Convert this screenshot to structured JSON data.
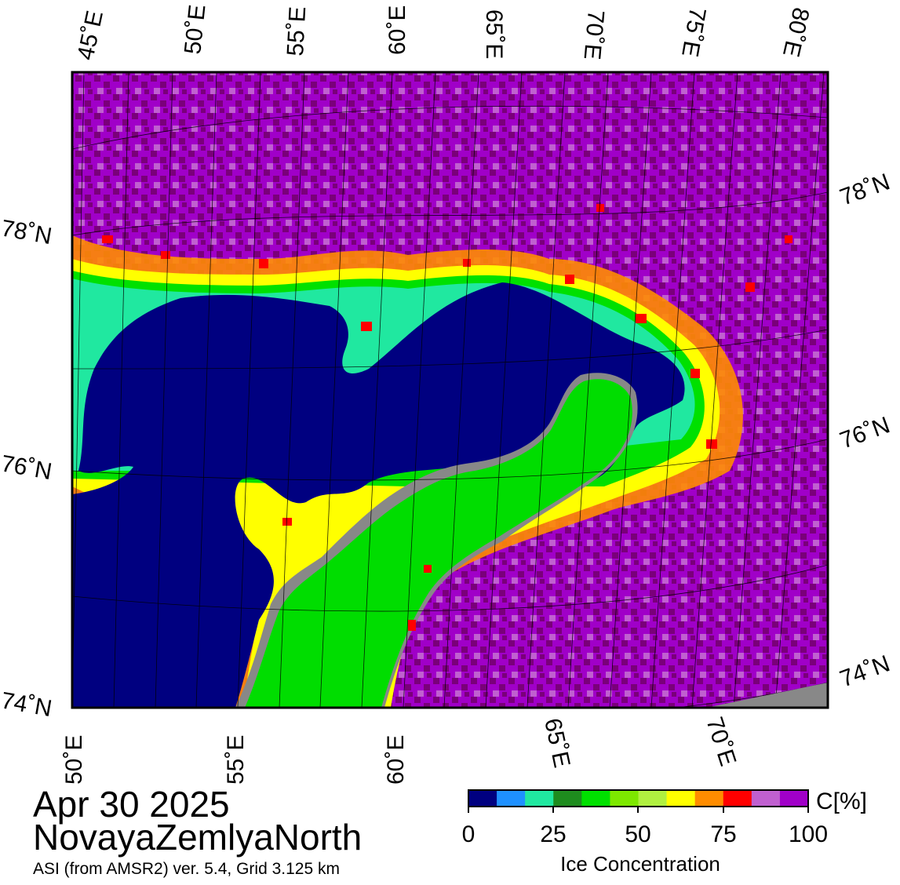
{
  "map": {
    "date": "Apr 30 2025",
    "region": "NovayaZemlyaNorth",
    "product": "ASI (from AMSR2) ver. 5.4,  Grid 3.125 km",
    "top_lon_labels": [
      "45˚E",
      "50˚E",
      "55˚E",
      "60˚E",
      "65˚E",
      "70˚E",
      "75˚E",
      "80˚E"
    ],
    "bottom_lon_labels": [
      "50˚E",
      "55˚E",
      "60˚E",
      "65˚E",
      "70˚E"
    ],
    "left_lat_labels": [
      "78˚N",
      "76˚N",
      "74˚N"
    ],
    "right_lat_labels": [
      "78˚N",
      "76˚N",
      "74˚N"
    ],
    "colors": {
      "open_water": "#000080",
      "land": "#00dd00",
      "land_shadow": "#888888",
      "ice_high": "#7a007a",
      "ice_full": "#a000c8",
      "frame": "#000000"
    }
  },
  "legend": {
    "unit_label": "C[%]",
    "title": "Ice Concentration",
    "tick_labels": [
      "0",
      "25",
      "50",
      "75",
      "100"
    ],
    "min": 0,
    "max": 100,
    "colors": [
      "#000080",
      "#1e90ff",
      "#20e8a0",
      "#1e8c1e",
      "#00e000",
      "#7de800",
      "#b0f040",
      "#ffff00",
      "#ff8c00",
      "#ff0000",
      "#c060d0",
      "#a000c8"
    ]
  }
}
